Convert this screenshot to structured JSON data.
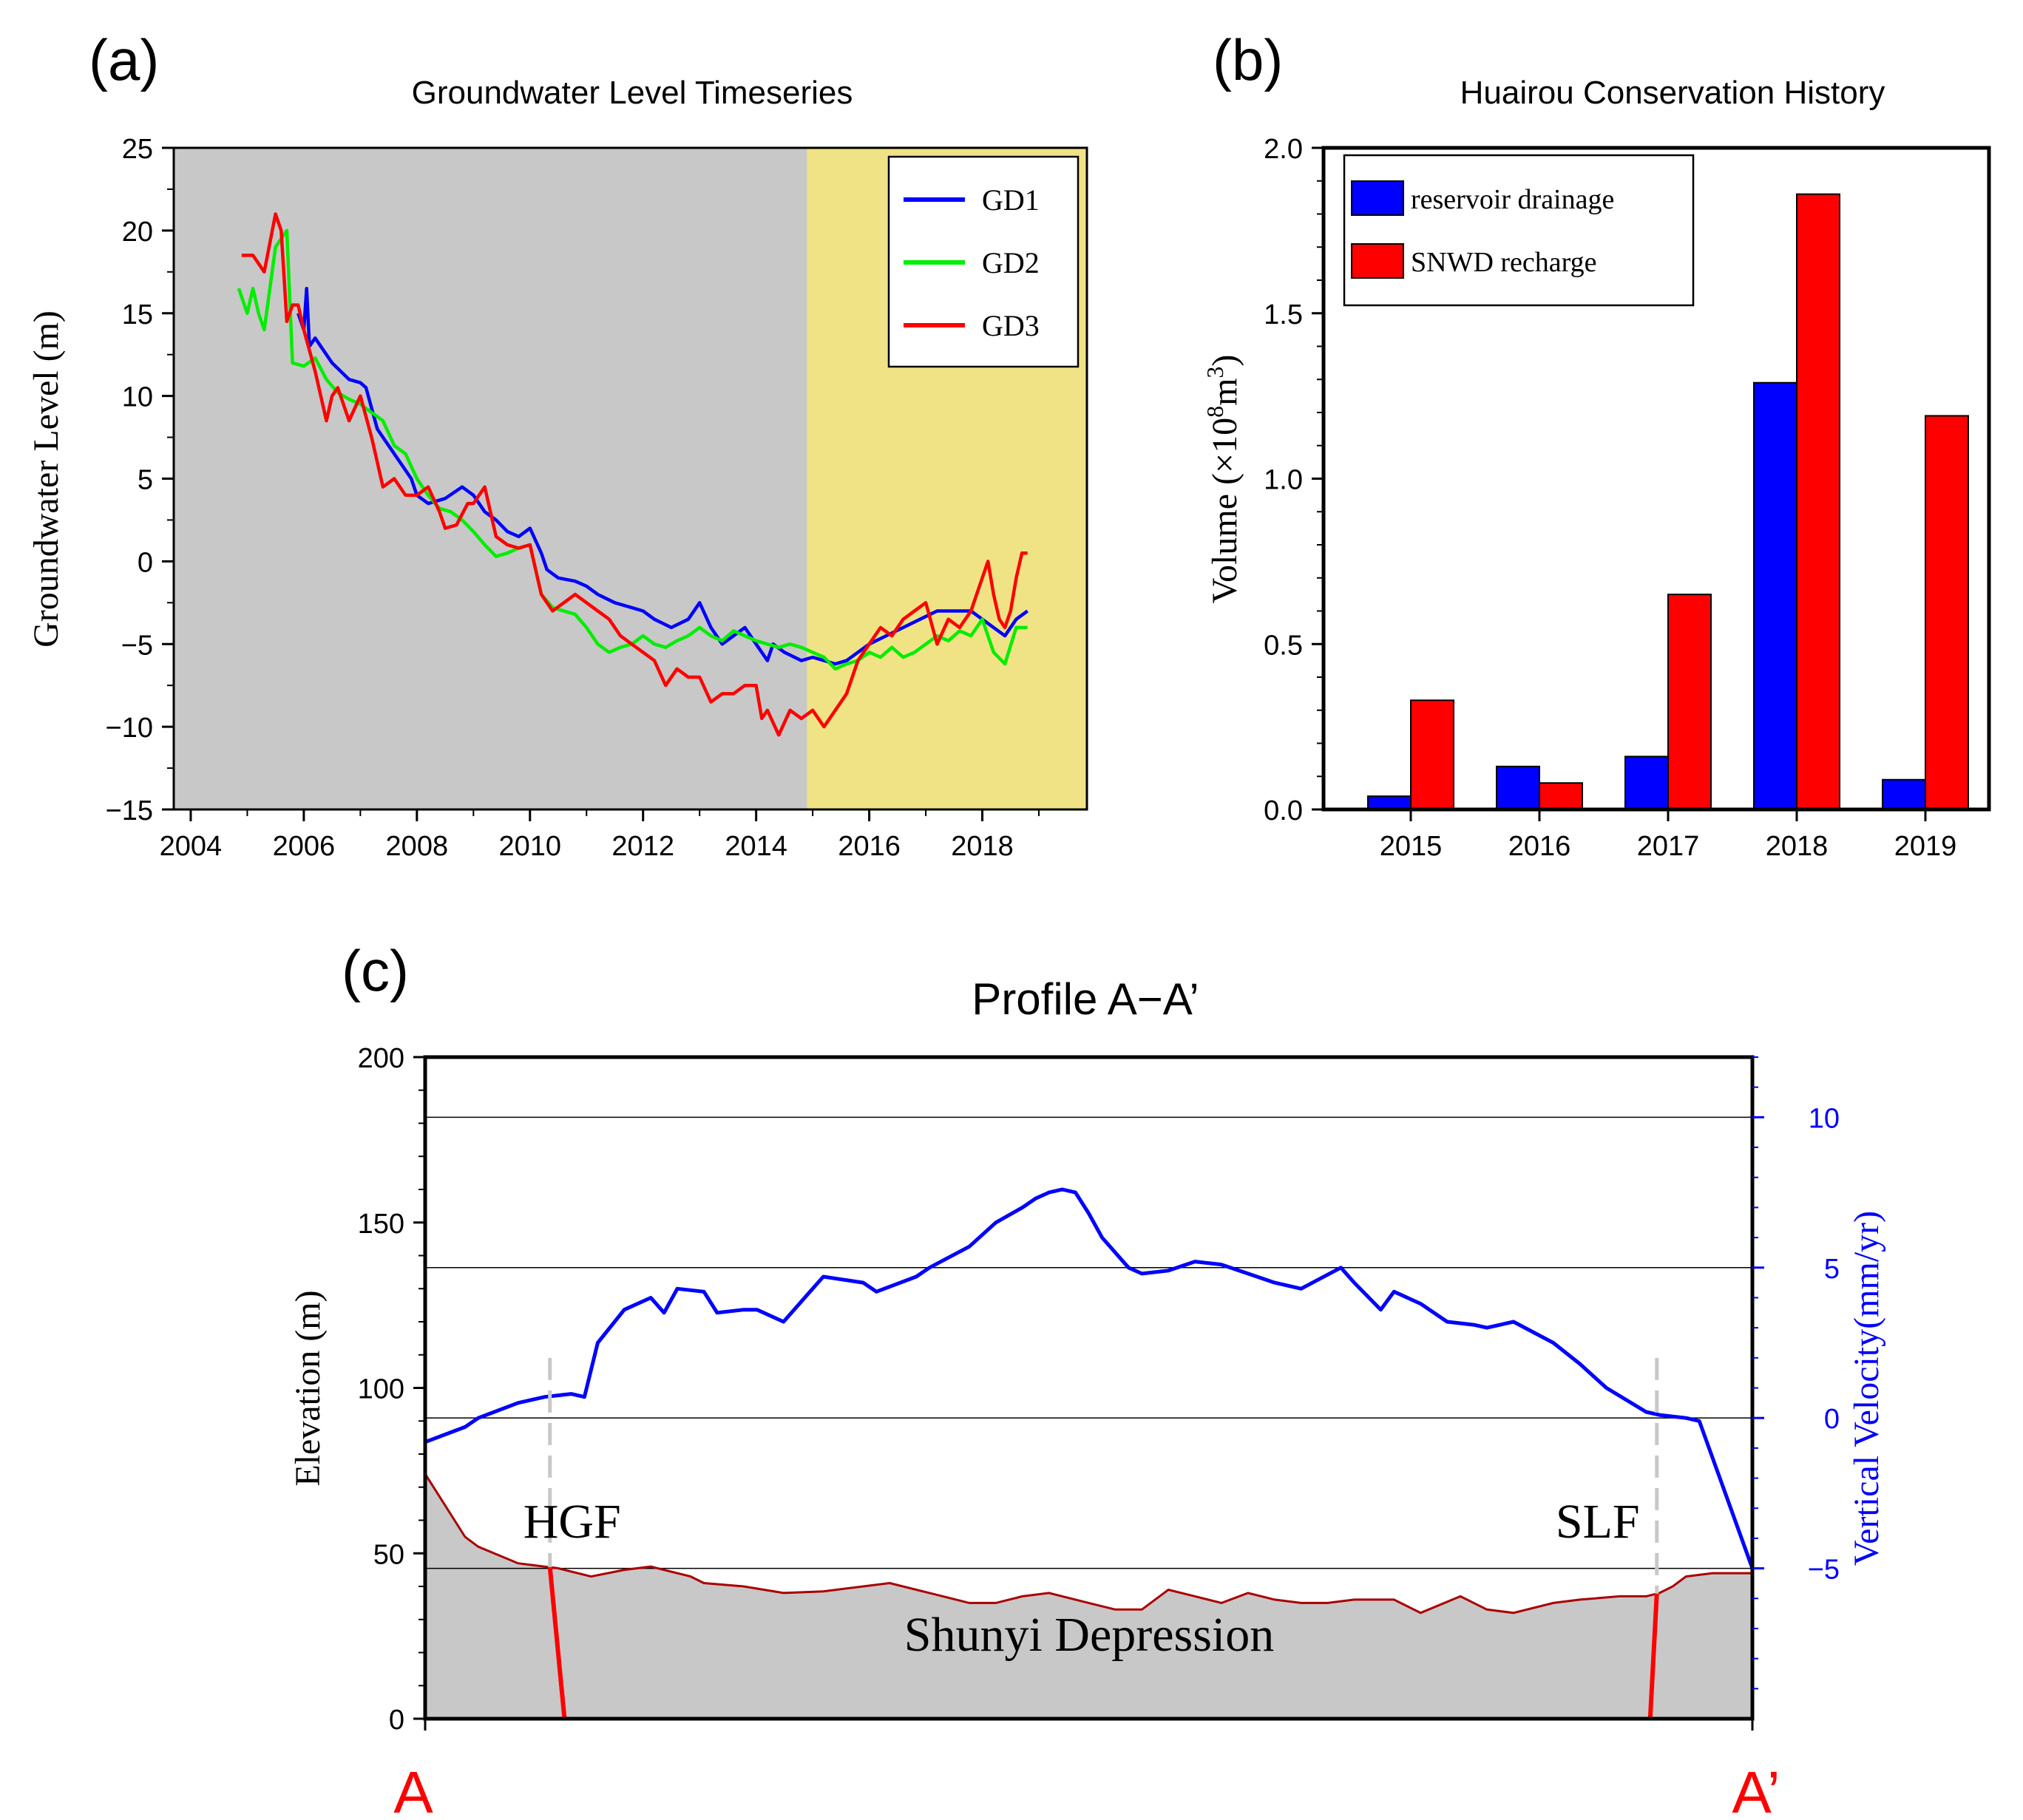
{
  "chart_data": [
    {
      "panel": "(a)",
      "type": "line",
      "title": "Groundwater Level Timeseries",
      "xlabel": "",
      "ylabel": "Groundwater Level (m)",
      "xlim": [
        2003.7,
        2019.85
      ],
      "ylim": [
        -15,
        25
      ],
      "xticks": [
        2004,
        2006,
        2008,
        2010,
        2012,
        2014,
        2016,
        2018
      ],
      "yticks": [
        -15,
        -10,
        -5,
        0,
        5,
        10,
        15,
        20,
        25
      ],
      "shading": [
        {
          "from": 2003.7,
          "to": 2014.9,
          "color": "#c8c8c8"
        },
        {
          "from": 2014.9,
          "to": 2019.85,
          "color": "#f0e386"
        }
      ],
      "legend_position": "top-right",
      "series": [
        {
          "name": "GD1",
          "color": "#0000ff",
          "x": [
            2005.9,
            2006.0,
            2006.05,
            2006.1,
            2006.2,
            2006.5,
            2006.8,
            2007.0,
            2007.1,
            2007.3,
            2007.5,
            2007.7,
            2007.9,
            2008.0,
            2008.2,
            2008.5,
            2008.8,
            2009.0,
            2009.2,
            2009.4,
            2009.6,
            2009.8,
            2010.0,
            2010.2,
            2010.3,
            2010.5,
            2010.8,
            2011.0,
            2011.2,
            2011.5,
            2011.8,
            2012.0,
            2012.2,
            2012.5,
            2012.8,
            2013.0,
            2013.2,
            2013.4,
            2013.6,
            2013.8,
            2014.0,
            2014.2,
            2014.3,
            2014.5,
            2014.8,
            2015.0,
            2015.2,
            2015.4,
            2015.6,
            2015.8,
            2016.0,
            2016.3,
            2016.6,
            2016.9,
            2017.2,
            2017.5,
            2017.8,
            2018.0,
            2018.2,
            2018.4,
            2018.6,
            2018.8
          ],
          "y": [
            15,
            14,
            16.5,
            13,
            13.5,
            12,
            11,
            10.8,
            10.5,
            8,
            7,
            6,
            5,
            4,
            3.5,
            3.8,
            4.5,
            4,
            3,
            2.5,
            1.8,
            1.5,
            2,
            0.5,
            -0.5,
            -1,
            -1.2,
            -1.5,
            -2,
            -2.5,
            -2.8,
            -3,
            -3.5,
            -4,
            -3.5,
            -2.5,
            -4,
            -5,
            -4.5,
            -4,
            -5,
            -6,
            -5,
            -5.5,
            -6,
            -5.8,
            -6,
            -6.2,
            -6,
            -5.5,
            -5,
            -4.5,
            -4,
            -3.5,
            -3,
            -3,
            -3,
            -3.5,
            -4,
            -4.5,
            -3.5,
            -3
          ]
        },
        {
          "name": "GD2",
          "color": "#00ee00",
          "x": [
            2004.85,
            2005.0,
            2005.1,
            2005.2,
            2005.3,
            2005.5,
            2005.7,
            2005.8,
            2006.0,
            2006.2,
            2006.4,
            2006.6,
            2006.8,
            2007.0,
            2007.2,
            2007.4,
            2007.6,
            2007.8,
            2008.0,
            2008.2,
            2008.4,
            2008.6,
            2008.8,
            2009.0,
            2009.2,
            2009.4,
            2009.6,
            2009.8,
            2010.0,
            2010.2,
            2010.4,
            2010.6,
            2010.8,
            2011.0,
            2011.2,
            2011.4,
            2011.6,
            2011.8,
            2012.0,
            2012.2,
            2012.4,
            2012.6,
            2012.8,
            2013.0,
            2013.2,
            2013.4,
            2013.6,
            2013.8,
            2014.0,
            2014.2,
            2014.4,
            2014.6,
            2014.8,
            2015.0,
            2015.2,
            2015.4,
            2015.6,
            2015.8,
            2016.0,
            2016.2,
            2016.4,
            2016.6,
            2016.8,
            2017.0,
            2017.2,
            2017.4,
            2017.6,
            2017.8,
            2018.0,
            2018.2,
            2018.4,
            2018.6,
            2018.8
          ],
          "y": [
            16.5,
            15,
            16.5,
            15,
            14,
            19,
            20,
            12,
            11.8,
            12.3,
            11,
            10.2,
            9.8,
            9.5,
            9,
            8.5,
            7,
            6.5,
            5,
            4,
            3.2,
            3,
            2.5,
            1.8,
            1,
            0.3,
            0.5,
            0.8,
            1,
            -2,
            -2.8,
            -3,
            -3.2,
            -4,
            -5,
            -5.5,
            -5.2,
            -5,
            -4.5,
            -5,
            -5.2,
            -4.8,
            -4.5,
            -4,
            -4.5,
            -4.8,
            -4.2,
            -4.5,
            -4.8,
            -5,
            -5.2,
            -5,
            -5.2,
            -5.5,
            -5.8,
            -6.5,
            -6.2,
            -6,
            -5.5,
            -5.8,
            -5.2,
            -5.8,
            -5.5,
            -5,
            -4.5,
            -4.8,
            -4.2,
            -4.5,
            -3.5,
            -5.5,
            -6.2,
            -4,
            -4
          ]
        },
        {
          "name": "GD3",
          "color": "#ff0000",
          "x": [
            2004.9,
            2005.1,
            2005.3,
            2005.5,
            2005.6,
            2005.7,
            2005.8,
            2005.9,
            2006.0,
            2006.2,
            2006.4,
            2006.5,
            2006.6,
            2006.8,
            2007.0,
            2007.2,
            2007.4,
            2007.6,
            2007.8,
            2008.0,
            2008.2,
            2008.4,
            2008.5,
            2008.7,
            2008.9,
            2009.0,
            2009.2,
            2009.4,
            2009.6,
            2009.8,
            2010.0,
            2010.2,
            2010.4,
            2010.6,
            2010.8,
            2011.0,
            2011.2,
            2011.4,
            2011.6,
            2011.8,
            2012.0,
            2012.2,
            2012.4,
            2012.6,
            2012.8,
            2013.0,
            2013.2,
            2013.4,
            2013.6,
            2013.8,
            2014.0,
            2014.1,
            2014.2,
            2014.4,
            2014.6,
            2014.8,
            2015.0,
            2015.2,
            2015.4,
            2015.6,
            2015.8,
            2016.0,
            2016.2,
            2016.4,
            2016.6,
            2016.8,
            2017.0,
            2017.2,
            2017.4,
            2017.6,
            2017.8,
            2018.0,
            2018.1,
            2018.2,
            2018.3,
            2018.4,
            2018.5,
            2018.6,
            2018.7,
            2018.8
          ],
          "y": [
            18.5,
            18.5,
            17.5,
            21,
            20,
            14.5,
            15.5,
            15.5,
            14,
            11.5,
            8.5,
            10,
            10.5,
            8.5,
            10,
            7.5,
            4.5,
            5,
            4,
            4,
            4.5,
            3,
            2,
            2.2,
            3.5,
            3.5,
            4.5,
            1.5,
            1,
            0.8,
            1,
            -2,
            -3,
            -2.5,
            -2,
            -2.5,
            -3,
            -3.5,
            -4.5,
            -5,
            -5.5,
            -6,
            -7.5,
            -6.5,
            -7,
            -7,
            -8.5,
            -8,
            -8,
            -7.5,
            -7.5,
            -9.5,
            -9,
            -10.5,
            -9,
            -9.5,
            -9,
            -10,
            -9,
            -8,
            -6,
            -5,
            -4,
            -4.5,
            -3.5,
            -3,
            -2.5,
            -5,
            -3.5,
            -4,
            -3,
            -1,
            0,
            -2,
            -3.5,
            -4,
            -3,
            -1,
            0.5,
            0.5
          ]
        }
      ]
    },
    {
      "panel": "(b)",
      "type": "bar",
      "title": "Huairou Conservation History",
      "xlabel": "",
      "ylabel_main": "Volume (×10",
      "ylabel_exp1": "8",
      "ylabel_mid": "m",
      "ylabel_exp2": "3",
      "ylabel_end": ")",
      "ylim": [
        0,
        2.0
      ],
      "yticks": [
        0.0,
        0.5,
        1.0,
        1.5,
        2.0
      ],
      "ytick_labels": [
        "0.0",
        "0.5",
        "1.0",
        "1.5",
        "2.0"
      ],
      "categories": [
        "2015",
        "2016",
        "2017",
        "2018",
        "2019"
      ],
      "legend_position": "top-left",
      "series": [
        {
          "name": "reservoir drainage",
          "color": "#0000ff",
          "values": [
            0.04,
            0.13,
            0.16,
            1.29,
            0.09
          ]
        },
        {
          "name": "SNWD recharge",
          "color": "#ff0000",
          "values": [
            0.33,
            0.08,
            0.65,
            1.86,
            1.19
          ]
        }
      ]
    },
    {
      "panel": "(c)",
      "type": "line",
      "title": "Profile A−A’",
      "xlabel": "",
      "ylabel": "Elevation (m)",
      "ylabel_right": "Vertical Velocity(mm/yr)",
      "xlim": [
        0,
        100
      ],
      "ylim_left": [
        0,
        200
      ],
      "yticks_left": [
        0,
        50,
        100,
        150,
        200
      ],
      "ylim_right": [
        -10,
        12
      ],
      "yticks_right": [
        -5,
        0,
        5,
        10
      ],
      "gridlines_right": [
        -5,
        0,
        5,
        10
      ],
      "start_label": "A",
      "end_label": "A’",
      "basin_label": "Shunyi Depression",
      "elevation": {
        "color": "#aa0000",
        "fill": "#c8c8c8",
        "x": [
          0,
          3,
          4,
          7,
          9,
          10,
          12.5,
          15,
          17,
          20,
          21,
          24,
          27,
          30,
          33,
          35,
          37,
          39,
          41,
          43,
          45,
          47,
          49,
          50,
          52,
          54,
          56,
          58,
          60,
          62,
          64,
          66,
          68,
          70,
          73,
          75,
          78,
          80,
          82,
          85,
          87,
          90,
          92,
          93,
          94,
          95,
          97,
          100
        ],
        "y": [
          74,
          55,
          52,
          47,
          46,
          45.5,
          43,
          45,
          46,
          43,
          41,
          40,
          38,
          38.5,
          40,
          41,
          39,
          37,
          35,
          35,
          37,
          38,
          36,
          35,
          33,
          33,
          39,
          37,
          35,
          38,
          36,
          35,
          35,
          36,
          36,
          32,
          37,
          33,
          32,
          35,
          36,
          37,
          37,
          38,
          40,
          43,
          44,
          44
        ]
      },
      "velocity": {
        "color": "#0000ff",
        "x": [
          0,
          3,
          4,
          7,
          9,
          11,
          12,
          13,
          15,
          17,
          18,
          19,
          21,
          22,
          24,
          25,
          27,
          29,
          30,
          33,
          34,
          37,
          38,
          41,
          43,
          45,
          46,
          47,
          48,
          49,
          50,
          51,
          53,
          54,
          56,
          58,
          60,
          62,
          64,
          66,
          69,
          70,
          72,
          73,
          75,
          77,
          79,
          80,
          82,
          85,
          87,
          89,
          92,
          93,
          95,
          96
        ],
        "y": [
          -0.8,
          -0.3,
          0,
          0.5,
          0.7,
          0.8,
          0.7,
          2.5,
          3.6,
          4,
          3.5,
          4.3,
          4.2,
          3.5,
          3.6,
          3.6,
          3.2,
          4.2,
          4.7,
          4.5,
          4.2,
          4.7,
          5,
          5.7,
          6.5,
          7,
          7.3,
          7.5,
          7.6,
          7.5,
          6.8,
          6,
          5,
          4.8,
          4.9,
          5.2,
          5.1,
          4.8,
          4.5,
          4.3,
          5,
          4.5,
          3.6,
          4.2,
          3.8,
          3.2,
          3.1,
          3,
          3.2,
          2.5,
          1.8,
          1,
          0.2,
          0.1,
          0,
          -0.1
        ]
      },
      "faults": [
        {
          "name": "HGF",
          "x_surface": 9.4,
          "x_base": 10.5,
          "top_velocity": 2.0
        },
        {
          "name": "SLF",
          "x_surface": 92.8,
          "x_base": 92.3,
          "top_velocity": 2.0
        }
      ]
    }
  ]
}
